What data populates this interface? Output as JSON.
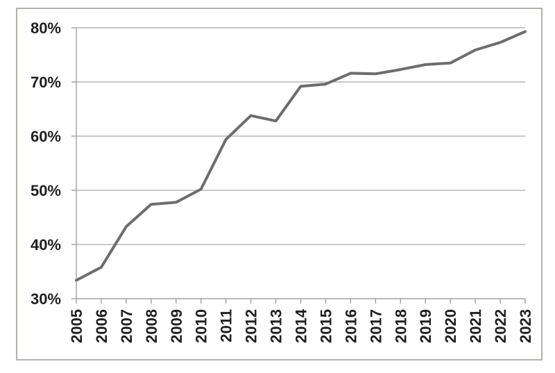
{
  "chart_data": {
    "type": "line",
    "title": "",
    "xlabel": "",
    "ylabel": "",
    "categories": [
      "2005",
      "2006",
      "2007",
      "2008",
      "2009",
      "2010",
      "2011",
      "2012",
      "2013",
      "2014",
      "2015",
      "2016",
      "2017",
      "2018",
      "2019",
      "2020",
      "2021",
      "2022",
      "2023"
    ],
    "values": [
      33.4,
      35.8,
      43.3,
      47.4,
      47.8,
      50.2,
      59.4,
      63.8,
      62.8,
      69.2,
      69.6,
      71.6,
      71.5,
      72.3,
      73.2,
      73.5,
      75.9,
      77.3,
      79.3
    ],
    "ylim": [
      30,
      80
    ],
    "y_ticks": [
      {
        "value": 30,
        "label": "30%"
      },
      {
        "value": 40,
        "label": "40%"
      },
      {
        "value": 50,
        "label": "50%"
      },
      {
        "value": 60,
        "label": "60%"
      },
      {
        "value": 70,
        "label": "70%"
      },
      {
        "value": 80,
        "label": "80%"
      }
    ],
    "grid": true,
    "legend_position": "none",
    "colors": {
      "line": "#6d6d6d",
      "gridline": "#a8a8a8",
      "axis": "#a0a0a0",
      "tick": "#a0a0a0",
      "label_text": "#1f1f1f",
      "frame_border": "#b3b0ac",
      "background": "#ffffff"
    }
  }
}
